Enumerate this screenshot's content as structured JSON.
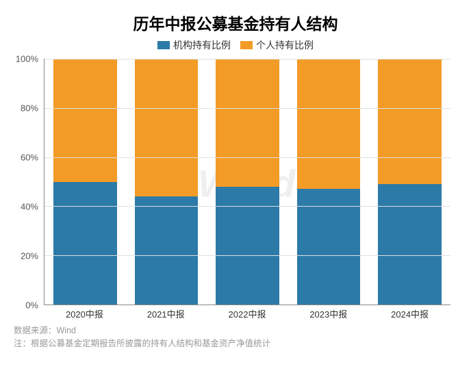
{
  "chart": {
    "type": "stacked-bar",
    "title": "历年中报公募基金持有人结构",
    "title_fontsize": 23,
    "title_fontweight": "bold",
    "title_color": "#000000",
    "background_color": "#ffffff",
    "watermark_text": "Wind",
    "watermark_color": "rgba(180,180,180,0.22)",
    "legend": {
      "position": "top-center",
      "fontsize": 14,
      "items": [
        {
          "label": "机构持有比例",
          "color": "#2c7aa8"
        },
        {
          "label": "个人持有比例",
          "color": "#f39b27"
        }
      ]
    },
    "y_axis": {
      "ylim": [
        0,
        100
      ],
      "ytick_step": 20,
      "tick_suffix": "%",
      "tick_fontsize": 13,
      "tick_color": "#555555",
      "axis_line_color": "#888888",
      "grid_color": "#e0e0e0",
      "ticks": [
        0,
        20,
        40,
        60,
        80,
        100
      ]
    },
    "x_axis": {
      "tick_fontsize": 13,
      "tick_color": "#333333",
      "axis_line_color": "#888888"
    },
    "bar_width": 0.78,
    "categories": [
      "2020中报",
      "2021中报",
      "2022中报",
      "2023中报",
      "2024中报"
    ],
    "series": {
      "institutional": {
        "label": "机构持有比例",
        "color": "#2c7aa8",
        "values": [
          50,
          44,
          48,
          47,
          49
        ]
      },
      "individual": {
        "label": "个人持有比例",
        "color": "#f39b27",
        "values": [
          50,
          56,
          52,
          53,
          51
        ]
      }
    }
  },
  "footer": {
    "source_label": "数据来源：Wind",
    "note": "注：根据公募基金定期报告所披露的持有人结构和基金资产净值统计",
    "fontsize": 12.5,
    "color": "#999999"
  }
}
